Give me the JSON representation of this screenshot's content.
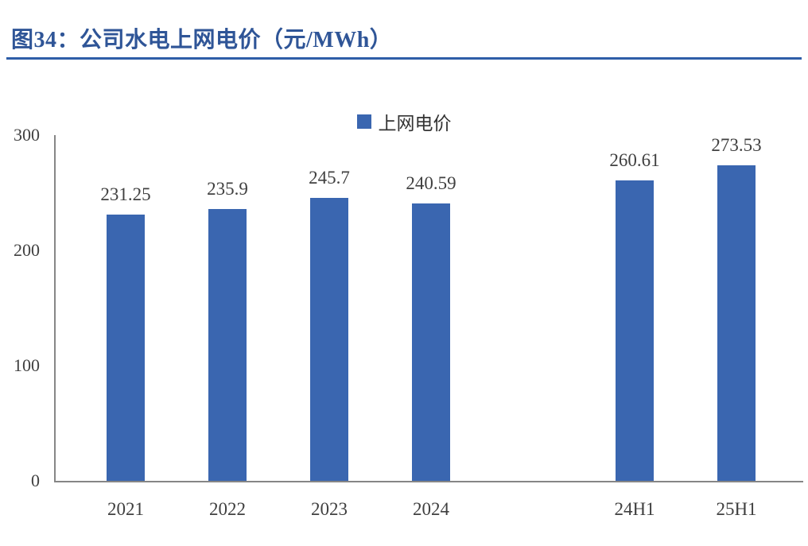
{
  "header": {
    "title": "图34：公司水电上网电价（元/MWh）"
  },
  "legend": {
    "label": "上网电价"
  },
  "colors": {
    "title": "#2F5597",
    "rule": "#2E5EA8",
    "bar": "#3A66B0",
    "axis": "#868686"
  },
  "chart_data": {
    "type": "bar",
    "title": "图34：公司水电上网电价（元/MWh）",
    "series_name": "上网电价",
    "categories": [
      "2021",
      "2022",
      "2023",
      "2024",
      "24H1",
      "25H1"
    ],
    "values": [
      231.25,
      235.9,
      245.7,
      240.59,
      260.61,
      273.53
    ],
    "value_labels": [
      "231.25",
      "235.9",
      "245.7",
      "240.59",
      "260.61",
      "273.53"
    ],
    "xlabel": "",
    "ylabel": "",
    "ylim": [
      0,
      300
    ],
    "yticks": [
      0,
      100,
      200,
      300
    ],
    "bar_color": "#3A66B0",
    "grid": false,
    "legend_position": "top-center",
    "gap_after_category": "2024"
  }
}
